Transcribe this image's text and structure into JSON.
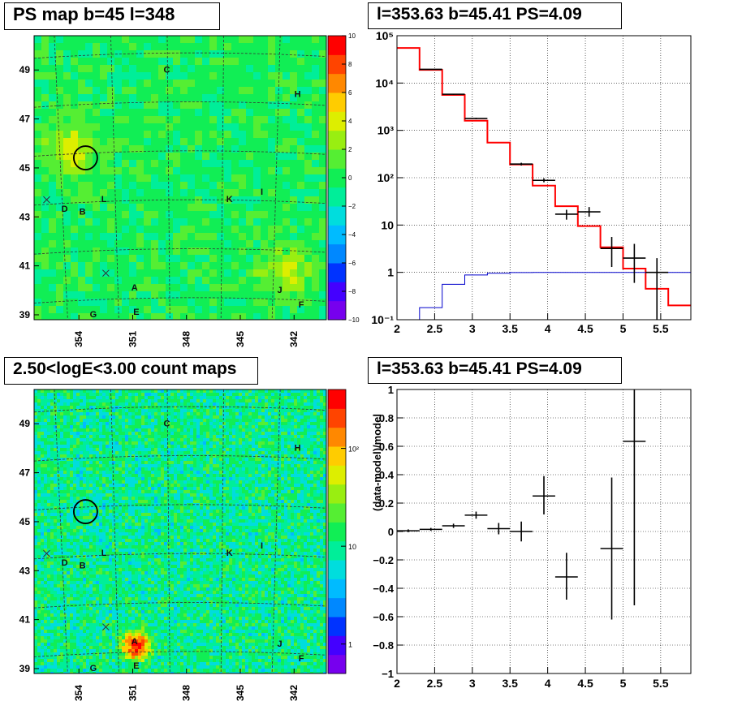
{
  "panels": {
    "ps_map": {
      "title": "PS map b=45 l=348",
      "x_ticks": [
        "354",
        "351",
        "348",
        "345",
        "342"
      ],
      "y_ticks": [
        "49",
        "47",
        "45",
        "43",
        "41",
        "39"
      ],
      "colorbar_ticks": [
        "10",
        "8",
        "6",
        "4",
        "2",
        "0",
        "−2",
        "−4",
        "−6",
        "−8",
        "−10"
      ],
      "base_color": "#55ee33"
    },
    "count_map": {
      "title": "2.50<logE<3.00 count maps",
      "x_ticks": [
        "354",
        "351",
        "348",
        "345",
        "342"
      ],
      "y_ticks": [
        "49",
        "47",
        "45",
        "43",
        "41",
        "39"
      ],
      "colorbar_ticks": [
        "10²",
        "10",
        "1"
      ]
    },
    "spectrum": {
      "title": "l=353.63 b=45.41 PS=4.09",
      "x_ticks": [
        "2",
        "2.5",
        "3",
        "3.5",
        "4",
        "4.5",
        "5",
        "5.5"
      ],
      "y_ticks": [
        "10⁵",
        "10⁴",
        "10³",
        "10²",
        "10",
        "1",
        "10⁻¹"
      ]
    },
    "residual": {
      "title": "l=353.63 b=45.41 PS=4.09",
      "ylabel": "(data-model)/model",
      "x_ticks": [
        "2",
        "2.5",
        "3",
        "3.5",
        "4",
        "4.5",
        "5",
        "5.5"
      ],
      "y_ticks": [
        "1",
        "0.8",
        "0.6",
        "0.4",
        "0.2",
        "0",
        "−0.2",
        "−0.4",
        "−0.6",
        "−0.8",
        "−1"
      ]
    }
  },
  "sources": [
    {
      "label": "C",
      "l": 349.1,
      "b": 48.9
    },
    {
      "label": "H",
      "l": 341.8,
      "b": 47.9
    },
    {
      "label": "L",
      "l": 352.6,
      "b": 43.6
    },
    {
      "label": "D",
      "l": 354.8,
      "b": 43.2
    },
    {
      "label": "B",
      "l": 353.8,
      "b": 43.1
    },
    {
      "label": "K",
      "l": 345.6,
      "b": 43.6
    },
    {
      "label": "I",
      "l": 343.8,
      "b": 43.9
    },
    {
      "label": "A",
      "l": 350.9,
      "b": 40.0
    },
    {
      "label": "J",
      "l": 342.8,
      "b": 39.9
    },
    {
      "label": "F",
      "l": 341.6,
      "b": 39.3
    },
    {
      "label": "G",
      "l": 353.2,
      "b": 38.9
    },
    {
      "label": "E",
      "l": 350.8,
      "b": 39.0
    }
  ],
  "chart_data": [
    {
      "type": "heatmap",
      "name": "PS map",
      "xlabel": "",
      "ylabel": "",
      "xlim": [
        356.5,
        340.2
      ],
      "ylim": [
        38.8,
        50.4
      ],
      "zlim": [
        -10,
        10
      ],
      "grid": true,
      "hotspots": [
        {
          "l": 354.7,
          "b": 45.9,
          "value": 4.09
        },
        {
          "l": 342.7,
          "b": 40.9,
          "value": 3.2
        }
      ],
      "circle": {
        "l": 353.63,
        "b": 45.41
      },
      "crosses": [
        {
          "l": 355.8,
          "b": 43.7
        },
        {
          "l": 352.5,
          "b": 40.7
        }
      ]
    },
    {
      "type": "heatmap",
      "name": "count map",
      "xlabel": "",
      "ylabel": "",
      "xlim": [
        356.5,
        340.2
      ],
      "ylim": [
        38.8,
        50.4
      ],
      "zscale": "log",
      "zlim": [
        0.5,
        400
      ],
      "hotspots": [
        {
          "l": 350.9,
          "b": 40.0,
          "value": 400
        }
      ],
      "circle": {
        "l": 353.63,
        "b": 45.41
      },
      "crosses": [
        {
          "l": 355.8,
          "b": 43.7
        },
        {
          "l": 352.5,
          "b": 40.7
        }
      ]
    },
    {
      "type": "line",
      "name": "spectrum",
      "xlabel": "",
      "ylabel": "",
      "xlim": [
        2.0,
        5.9
      ],
      "ylim": [
        0.1,
        100000
      ],
      "yscale": "log",
      "grid": true,
      "bin_edges": [
        2.0,
        2.3,
        2.6,
        2.9,
        3.2,
        3.5,
        3.8,
        4.1,
        4.4,
        4.7,
        5.0,
        5.3,
        5.6,
        5.9
      ],
      "series": [
        {
          "color": "#ff0000",
          "style": "step",
          "values": [
            55000,
            19000,
            5600,
            1600,
            550,
            190,
            68,
            25,
            9.5,
            3.4,
            1.2,
            0.45,
            0.2
          ]
        },
        {
          "color": "#0000cc",
          "style": "step",
          "values": [
            0.1,
            0.18,
            0.56,
            0.88,
            0.96,
            0.99,
            1.0,
            1.0,
            1.0,
            1.0,
            1.0,
            1.0,
            1.0
          ]
        },
        {
          "color": "#000000",
          "style": "errorbars",
          "points": [
            {
              "x": 2.45,
              "y": 19500,
              "lo": 19200,
              "hi": 19800
            },
            {
              "x": 2.75,
              "y": 5800,
              "lo": 5650,
              "hi": 5950
            },
            {
              "x": 3.05,
              "y": 1780,
              "lo": 1720,
              "hi": 1840
            },
            {
              "x": 3.65,
              "y": 194,
              "lo": 181,
              "hi": 207
            },
            {
              "x": 3.95,
              "y": 88,
              "lo": 80,
              "hi": 97
            },
            {
              "x": 4.25,
              "y": 17,
              "lo": 13,
              "hi": 21
            },
            {
              "x": 4.55,
              "y": 19,
              "lo": 15,
              "hi": 24
            },
            {
              "x": 4.85,
              "y": 3.2,
              "lo": 1.3,
              "hi": 5.6
            },
            {
              "x": 5.15,
              "y": 2.0,
              "lo": 0.6,
              "hi": 4.0
            },
            {
              "x": 5.45,
              "y": 1.0,
              "lo": 0.1,
              "hi": 2.0
            }
          ]
        }
      ]
    },
    {
      "type": "scatter",
      "name": "residual",
      "xlabel": "",
      "ylabel": "(data-model)/model",
      "xlim": [
        2.0,
        5.9
      ],
      "ylim": [
        -1,
        1
      ],
      "grid": true,
      "points": [
        {
          "x": 2.15,
          "y": 0.005,
          "lo": -0.005,
          "hi": 0.015
        },
        {
          "x": 2.45,
          "y": 0.015,
          "lo": 0.005,
          "hi": 0.025
        },
        {
          "x": 2.75,
          "y": 0.04,
          "lo": 0.025,
          "hi": 0.055
        },
        {
          "x": 3.05,
          "y": 0.115,
          "lo": 0.09,
          "hi": 0.14
        },
        {
          "x": 3.35,
          "y": 0.02,
          "lo": -0.02,
          "hi": 0.06
        },
        {
          "x": 3.65,
          "y": 0.0,
          "lo": -0.07,
          "hi": 0.07
        },
        {
          "x": 3.95,
          "y": 0.25,
          "lo": 0.12,
          "hi": 0.39
        },
        {
          "x": 4.25,
          "y": -0.32,
          "lo": -0.48,
          "hi": -0.15
        },
        {
          "x": 4.85,
          "y": -0.12,
          "lo": -0.62,
          "hi": 0.38
        },
        {
          "x": 5.15,
          "y": 0.635,
          "lo": -0.52,
          "hi": 1.0
        }
      ]
    }
  ]
}
